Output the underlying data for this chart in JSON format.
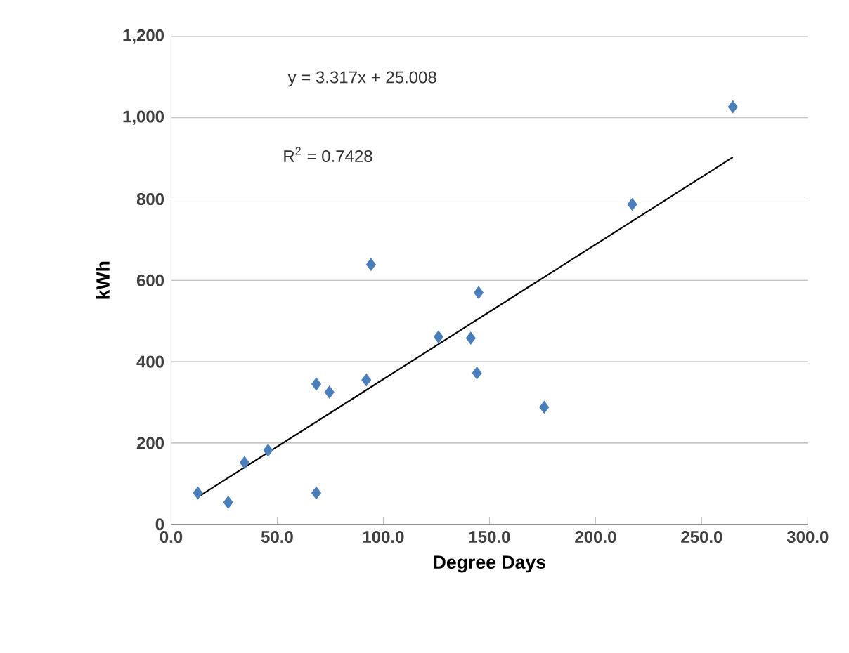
{
  "chart_data": {
    "type": "scatter",
    "xlabel": "Degree Days",
    "ylabel": "kWh",
    "grid": "y",
    "xlim": [
      0,
      300
    ],
    "ylim": [
      0,
      1200
    ],
    "xticks": [
      {
        "value": 0,
        "label": "0.0"
      },
      {
        "value": 50,
        "label": "50.0"
      },
      {
        "value": 100,
        "label": "100.0"
      },
      {
        "value": 150,
        "label": "150.0"
      },
      {
        "value": 200,
        "label": "200.0"
      },
      {
        "value": 250,
        "label": "250.0"
      },
      {
        "value": 300,
        "label": "300.0"
      }
    ],
    "yticks": [
      0,
      200,
      400,
      600,
      800,
      {
        "value": 1000,
        "label": "1,000"
      },
      {
        "value": 1200,
        "label": "1,200"
      }
    ],
    "annotations": [
      "y = 3.317x + 25.008",
      "R$^{2}$ = 0.7428"
    ],
    "series": [
      {
        "marker": "diamond",
        "color": "#4a7ebb",
        "x": [
          12.6,
          26.9,
          34.6,
          45.7,
          68.4,
          68.4,
          74.6,
          92.0,
          94.2,
          126.0,
          141.2,
          144.1,
          144.9,
          175.8,
          217.3,
          264.7
        ],
        "values": [
          77,
          54,
          152,
          182,
          77,
          345,
          325,
          355,
          639,
          461,
          458,
          372,
          570,
          288,
          787,
          1027
        ]
      },
      {
        "type": "line",
        "marker": "none",
        "color": "#000000",
        "x": [
          12.6,
          264.7
        ],
        "values": [
          67,
          903
        ]
      }
    ]
  }
}
